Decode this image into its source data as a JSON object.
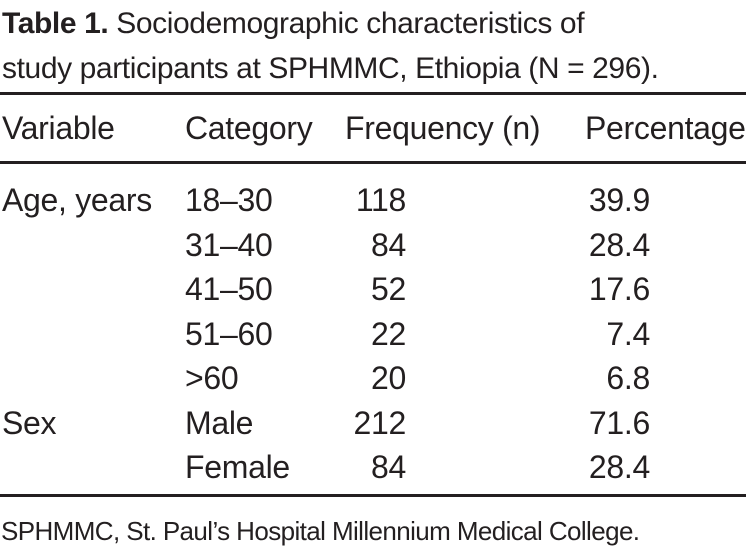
{
  "document": {
    "title": {
      "label": "Table 1.",
      "line1_rest": "Sociodemographic characteristics of",
      "line2": "study participants at SPHMMC, Ethiopia (N = 296)."
    },
    "table": {
      "columns": [
        "Variable",
        "Category",
        "Frequency (n)",
        "Percentage"
      ],
      "rows": [
        {
          "variable": "Age, years",
          "category": "18–30",
          "frequency": "118",
          "percentage": "39.9"
        },
        {
          "variable": "",
          "category": "31–40",
          "frequency": "84",
          "percentage": "28.4"
        },
        {
          "variable": "",
          "category": "41–50",
          "frequency": "52",
          "percentage": "17.6"
        },
        {
          "variable": "",
          "category": "51–60",
          "frequency": "22",
          "percentage": "7.4"
        },
        {
          "variable": "",
          "category": ">60",
          "frequency": "20",
          "percentage": "6.8"
        },
        {
          "variable": "Sex",
          "category": "Male",
          "frequency": "212",
          "percentage": "71.6"
        },
        {
          "variable": "",
          "category": "Female",
          "frequency": "84",
          "percentage": "28.4"
        }
      ],
      "footnote": "SPHMMC, St. Paul’s Hospital Millennium Medical College."
    },
    "colors": {
      "text": "#231f20",
      "background": "#ffffff",
      "rule": "#231f20"
    }
  }
}
